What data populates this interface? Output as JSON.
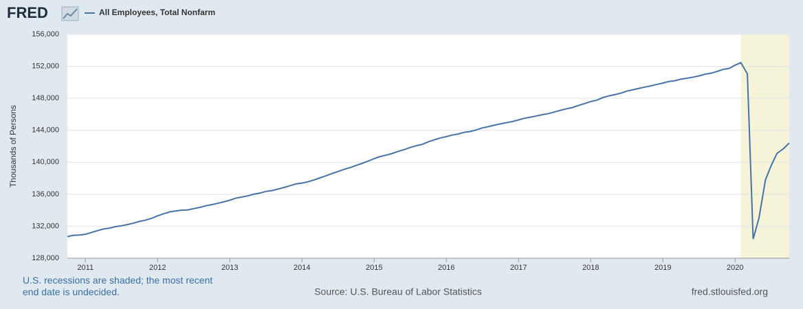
{
  "chart_data": {
    "type": "line",
    "logo": "FRED",
    "ylabel": "Thousands of Persons",
    "note": "U.S. recessions are shaded; the most recent end date is undecided.",
    "source": "Source: U.S. Bureau of Labor Statistics",
    "site": "fred.stlouisfed.org",
    "recession_color": "#f5f4d9",
    "recessions": [
      [
        2020.08,
        2020.75
      ]
    ],
    "grid": true,
    "xlim": [
      2010.75,
      2020.75
    ],
    "xticks": [
      2011,
      2012,
      2013,
      2014,
      2015,
      2016,
      2017,
      2018,
      2019,
      2020
    ],
    "ylim": [
      128000,
      156000
    ],
    "yticks": [
      {
        "value": 128000,
        "label": "128,000"
      },
      {
        "value": 132000,
        "label": "132,000"
      },
      {
        "value": 136000,
        "label": "136,000"
      },
      {
        "value": 140000,
        "label": "140,000"
      },
      {
        "value": 144000,
        "label": "144,000"
      },
      {
        "value": 148000,
        "label": "148,000"
      },
      {
        "value": 152000,
        "label": "152,000"
      },
      {
        "value": 156000,
        "label": "156,000"
      }
    ],
    "x": [
      2010.75,
      2010.83,
      2010.92,
      2011.0,
      2011.08,
      2011.17,
      2011.25,
      2011.33,
      2011.42,
      2011.5,
      2011.58,
      2011.67,
      2011.75,
      2011.83,
      2011.92,
      2012.0,
      2012.08,
      2012.17,
      2012.25,
      2012.33,
      2012.42,
      2012.5,
      2012.58,
      2012.67,
      2012.75,
      2012.83,
      2012.92,
      2013.0,
      2013.08,
      2013.17,
      2013.25,
      2013.33,
      2013.42,
      2013.5,
      2013.58,
      2013.67,
      2013.75,
      2013.83,
      2013.92,
      2014.0,
      2014.08,
      2014.17,
      2014.25,
      2014.33,
      2014.42,
      2014.5,
      2014.58,
      2014.67,
      2014.75,
      2014.83,
      2014.92,
      2015.0,
      2015.08,
      2015.17,
      2015.25,
      2015.33,
      2015.42,
      2015.5,
      2015.58,
      2015.67,
      2015.75,
      2015.83,
      2015.92,
      2016.0,
      2016.08,
      2016.17,
      2016.25,
      2016.33,
      2016.42,
      2016.5,
      2016.58,
      2016.67,
      2016.75,
      2016.83,
      2016.92,
      2017.0,
      2017.08,
      2017.17,
      2017.25,
      2017.33,
      2017.42,
      2017.5,
      2017.58,
      2017.67,
      2017.75,
      2017.83,
      2017.92,
      2018.0,
      2018.08,
      2018.17,
      2018.25,
      2018.33,
      2018.42,
      2018.5,
      2018.58,
      2018.67,
      2018.75,
      2018.83,
      2018.92,
      2019.0,
      2019.08,
      2019.17,
      2019.25,
      2019.33,
      2019.42,
      2019.5,
      2019.58,
      2019.67,
      2019.75,
      2019.83,
      2019.92,
      2020.0,
      2020.08,
      2020.17,
      2020.25,
      2020.33,
      2020.42,
      2020.5,
      2020.58,
      2020.67,
      2020.75
    ],
    "series": [
      {
        "name": "All Employees, Total Nonfarm",
        "color": "#4572a7",
        "values": [
          130700,
          130850,
          130900,
          131000,
          131200,
          131450,
          131650,
          131750,
          131950,
          132050,
          132200,
          132400,
          132600,
          132750,
          133000,
          133300,
          133550,
          133800,
          133900,
          134000,
          134050,
          134200,
          134350,
          134550,
          134700,
          134850,
          135050,
          135250,
          135500,
          135650,
          135800,
          136000,
          136150,
          136350,
          136450,
          136650,
          136850,
          137050,
          137300,
          137400,
          137550,
          137800,
          138050,
          138300,
          138600,
          138850,
          139100,
          139350,
          139600,
          139850,
          140150,
          140450,
          140700,
          140900,
          141100,
          141350,
          141600,
          141850,
          142050,
          142250,
          142550,
          142800,
          143050,
          143200,
          143400,
          143550,
          143750,
          143850,
          144050,
          144300,
          144450,
          144650,
          144800,
          144950,
          145100,
          145300,
          145500,
          145650,
          145800,
          145950,
          146100,
          146300,
          146500,
          146700,
          146850,
          147100,
          147350,
          147600,
          147750,
          148100,
          148300,
          148450,
          148650,
          148900,
          149050,
          149250,
          149400,
          149550,
          149750,
          149900,
          150100,
          150200,
          150400,
          150500,
          150650,
          150800,
          151000,
          151150,
          151350,
          151600,
          151750,
          152150,
          152450,
          151050,
          130400,
          133000,
          137800,
          139600,
          141100,
          141700,
          142400
        ]
      }
    ]
  }
}
